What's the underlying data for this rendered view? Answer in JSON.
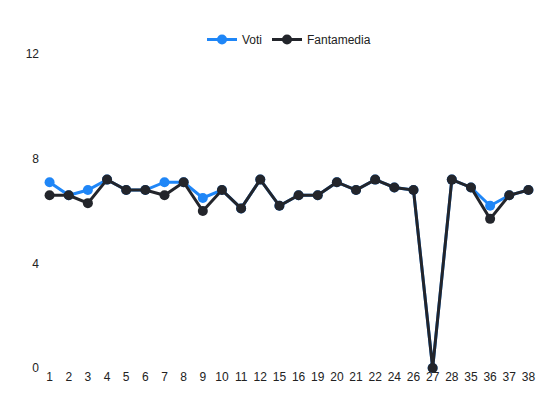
{
  "chart_data": {
    "type": "line",
    "categories": [
      "1",
      "2",
      "3",
      "4",
      "5",
      "6",
      "7",
      "8",
      "9",
      "10",
      "11",
      "12",
      "15",
      "16",
      "19",
      "20",
      "21",
      "22",
      "24",
      "26",
      "27",
      "28",
      "35",
      "36",
      "37",
      "38"
    ],
    "series": [
      {
        "name": "Voti",
        "color": "#1f86f7",
        "values": [
          7.1,
          6.6,
          6.8,
          7.2,
          6.8,
          6.8,
          7.1,
          7.1,
          6.5,
          6.8,
          6.1,
          7.2,
          6.2,
          6.6,
          6.6,
          7.1,
          6.8,
          7.2,
          6.9,
          6.8,
          0,
          7.2,
          6.9,
          6.2,
          6.6,
          6.8
        ]
      },
      {
        "name": "Fantamedia",
        "color": "#23252b",
        "values": [
          6.6,
          6.6,
          6.3,
          7.2,
          6.8,
          6.8,
          6.6,
          7.1,
          6.0,
          6.8,
          6.1,
          7.2,
          6.2,
          6.6,
          6.6,
          7.1,
          6.8,
          7.2,
          6.9,
          6.8,
          0,
          7.2,
          6.9,
          5.7,
          6.6,
          6.8
        ]
      }
    ],
    "ylim": [
      0,
      12
    ],
    "yticks": [
      0,
      4,
      8,
      12
    ],
    "grid": false,
    "legend": "top",
    "marker": "circle"
  }
}
